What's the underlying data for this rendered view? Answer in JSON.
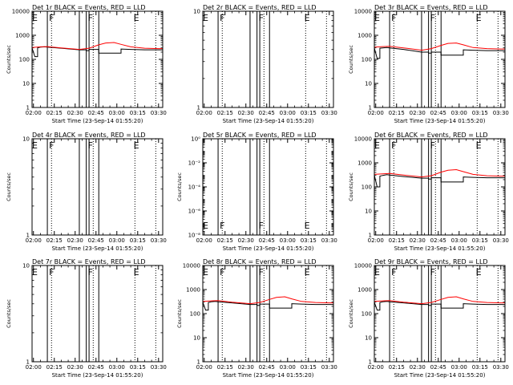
{
  "colors": {
    "background": "#ffffff",
    "axes": "#000000",
    "events": "#000000",
    "lld": "#ff0000"
  },
  "chart_data": [
    {
      "type": "line",
      "title": "Det 1r BLACK = Events, RED = LLD",
      "xlabel": "Start Time (23-Sep-14 01:55:20)",
      "ylabel": "Counts/sec",
      "yscale": "log",
      "ylim": [
        1,
        10000
      ],
      "yticks": [
        "1",
        "10",
        "100",
        "1000",
        "10000"
      ],
      "xlim": [
        "01:59",
        "03:33"
      ],
      "xticks": [
        "02:00",
        "02:15",
        "02:30",
        "02:45",
        "03:00",
        "03:15",
        "03:30"
      ],
      "solid_vlines": [
        "02:10",
        "02:33",
        "02:38",
        "02:40",
        "02:47"
      ],
      "dotted_vlines": [
        "02:13",
        "02:43",
        "03:13",
        "03:28"
      ],
      "markers": [
        {
          "label": "E",
          "time": "02:01"
        },
        {
          "label": "F",
          "time": "02:13"
        },
        {
          "label": "F",
          "time": "02:41"
        },
        {
          "label": "E",
          "time": "03:14"
        }
      ],
      "series": [
        {
          "color": "#000000",
          "x": [
            "01:59",
            "02:01",
            "02:03",
            "02:03",
            "02:05",
            "02:08",
            "02:10",
            "02:20",
            "02:33",
            "02:38",
            "02:38",
            "02:40",
            "02:40",
            "02:47",
            "02:47",
            "02:50",
            "02:55",
            "03:00",
            "03:03",
            "03:03",
            "03:10",
            "03:20",
            "03:30",
            "03:33"
          ],
          "y": [
            300,
            130,
            130,
            300,
            320,
            330,
            320,
            290,
            250,
            250,
            230,
            230,
            260,
            260,
            180,
            180,
            180,
            180,
            180,
            270,
            260,
            250,
            250,
            250
          ]
        },
        {
          "color": "#ff0000",
          "x": [
            "01:59",
            "02:05",
            "02:10",
            "02:20",
            "02:33",
            "02:40",
            "02:47",
            "02:52",
            "02:58",
            "03:03",
            "03:10",
            "03:20",
            "03:30",
            "03:33"
          ],
          "y": [
            310,
            330,
            340,
            300,
            260,
            290,
            400,
            480,
            500,
            420,
            330,
            290,
            280,
            280
          ]
        }
      ]
    },
    {
      "type": "line",
      "title": "Det 2r BLACK = Events, RED = LLD",
      "xlabel": "Start Time (23-Sep-14 01:55:20)",
      "ylabel": "",
      "yscale": "log",
      "ylim": [
        1,
        10
      ],
      "yticks": [
        "1",
        "10"
      ],
      "xlim": [
        "01:59",
        "03:33"
      ],
      "xticks": [
        "02:00",
        "02:15",
        "02:30",
        "02:45",
        "03:00",
        "03:15",
        "03:30"
      ],
      "solid_vlines": [
        "02:10",
        "02:33",
        "02:38",
        "02:40",
        "02:47"
      ],
      "dotted_vlines": [
        "02:13",
        "02:43",
        "03:13",
        "03:28"
      ],
      "markers": [
        {
          "label": "E",
          "time": "02:01"
        },
        {
          "label": "F",
          "time": "02:13"
        },
        {
          "label": "F",
          "time": "02:41"
        },
        {
          "label": "E",
          "time": "03:14"
        }
      ],
      "series": []
    },
    {
      "type": "line",
      "title": "Det 3r BLACK = Events, RED = LLD",
      "xlabel": "Start Time (23-Sep-14 01:55:20)",
      "ylabel": "Counts/sec",
      "yscale": "log",
      "ylim": [
        1,
        10000
      ],
      "yticks": [
        "1",
        "10",
        "100",
        "1000",
        "10000"
      ],
      "xlim": [
        "01:59",
        "03:33"
      ],
      "xticks": [
        "02:00",
        "02:15",
        "02:30",
        "02:45",
        "03:00",
        "03:15",
        "03:30"
      ],
      "solid_vlines": [
        "02:10",
        "02:33",
        "02:38",
        "02:40",
        "02:47"
      ],
      "dotted_vlines": [
        "02:13",
        "02:43",
        "03:13",
        "03:28"
      ],
      "markers": [
        {
          "label": "E",
          "time": "02:01"
        },
        {
          "label": "F",
          "time": "02:13"
        },
        {
          "label": "F",
          "time": "02:41"
        },
        {
          "label": "E",
          "time": "03:14"
        }
      ],
      "series": [
        {
          "color": "#000000",
          "x": [
            "01:59",
            "02:01",
            "02:03",
            "02:03",
            "02:05",
            "02:08",
            "02:10",
            "02:20",
            "02:33",
            "02:38",
            "02:38",
            "02:40",
            "02:40",
            "02:47",
            "02:47",
            "02:50",
            "02:55",
            "03:00",
            "03:03",
            "03:03",
            "03:10",
            "03:20",
            "03:30",
            "03:33"
          ],
          "y": [
            300,
            110,
            110,
            290,
            300,
            310,
            300,
            260,
            200,
            200,
            180,
            180,
            200,
            200,
            150,
            150,
            150,
            150,
            150,
            250,
            240,
            230,
            230,
            230
          ]
        },
        {
          "color": "#ff0000",
          "x": [
            "01:59",
            "02:05",
            "02:10",
            "02:20",
            "02:33",
            "02:40",
            "02:47",
            "02:52",
            "02:58",
            "03:03",
            "03:10",
            "03:20",
            "03:30",
            "03:33"
          ],
          "y": [
            320,
            340,
            350,
            300,
            240,
            280,
            380,
            460,
            480,
            400,
            310,
            280,
            270,
            270
          ]
        }
      ]
    },
    {
      "type": "line",
      "title": "Det 4r BLACK = Events, RED = LLD",
      "xlabel": "Start Time (23-Sep-14 01:55:20)",
      "ylabel": "Counts/sec",
      "yscale": "log",
      "ylim": [
        1,
        10
      ],
      "yticks": [
        "1",
        "10"
      ],
      "xlim": [
        "01:59",
        "03:33"
      ],
      "xticks": [
        "02:00",
        "02:15",
        "02:30",
        "02:45",
        "03:00",
        "03:15",
        "03:30"
      ],
      "solid_vlines": [
        "02:10",
        "02:33",
        "02:38",
        "02:40",
        "02:47"
      ],
      "dotted_vlines": [
        "02:13",
        "02:43",
        "03:13",
        "03:28"
      ],
      "markers": [
        {
          "label": "E",
          "time": "02:01"
        },
        {
          "label": "F",
          "time": "02:13"
        },
        {
          "label": "F",
          "time": "02:41"
        },
        {
          "label": "E",
          "time": "03:14"
        }
      ],
      "series": []
    },
    {
      "type": "line",
      "title": "Det 5r BLACK = Events, RED = LLD",
      "xlabel": "Start Time (23-Sep-14 01:55:20)",
      "ylabel": "Counts/sec",
      "yscale": "log",
      "ylim": [
        1e-08,
        1
      ],
      "yticks": [
        "10⁻⁸",
        "10⁻⁶",
        "10⁻⁴",
        "10⁻²",
        "10⁰"
      ],
      "xlim": [
        "01:59",
        "03:33"
      ],
      "xticks": [
        "02:00",
        "02:15",
        "02:30",
        "02:45",
        "03:00",
        "03:15",
        "03:30"
      ],
      "solid_vlines": [
        "02:10",
        "02:33",
        "02:38",
        "02:40",
        "02:47"
      ],
      "dotted_vlines": [
        "02:13",
        "02:43",
        "03:13",
        "03:28"
      ],
      "markers": [
        {
          "label": "E",
          "time": "02:01"
        },
        {
          "label": "F",
          "time": "02:13"
        },
        {
          "label": "F",
          "time": "02:41"
        },
        {
          "label": "E",
          "time": "03:14"
        }
      ],
      "series": []
    },
    {
      "type": "line",
      "title": "Det 6r BLACK = Events, RED = LLD",
      "xlabel": "Start Time (23-Sep-14 01:55:20)",
      "ylabel": "Counts/sec",
      "yscale": "log",
      "ylim": [
        1,
        10000
      ],
      "yticks": [
        "1",
        "10",
        "100",
        "1000",
        "10000"
      ],
      "xlim": [
        "01:59",
        "03:33"
      ],
      "xticks": [
        "02:00",
        "02:15",
        "02:30",
        "02:45",
        "03:00",
        "03:15",
        "03:30"
      ],
      "solid_vlines": [
        "02:10",
        "02:33",
        "02:38",
        "02:40",
        "02:47"
      ],
      "dotted_vlines": [
        "02:13",
        "02:43",
        "03:13",
        "03:28"
      ],
      "markers": [
        {
          "label": "E",
          "time": "02:01"
        },
        {
          "label": "F",
          "time": "02:13"
        },
        {
          "label": "F",
          "time": "02:41"
        },
        {
          "label": "E",
          "time": "03:14"
        }
      ],
      "series": [
        {
          "color": "#000000",
          "x": [
            "01:59",
            "02:01",
            "02:03",
            "02:03",
            "02:05",
            "02:08",
            "02:10",
            "02:20",
            "02:33",
            "02:38",
            "02:38",
            "02:40",
            "02:40",
            "02:47",
            "02:47",
            "02:50",
            "02:55",
            "03:00",
            "03:03",
            "03:03",
            "03:10",
            "03:20",
            "03:30",
            "03:33"
          ],
          "y": [
            310,
            100,
            100,
            280,
            300,
            320,
            310,
            270,
            230,
            230,
            210,
            210,
            240,
            240,
            160,
            160,
            160,
            160,
            160,
            260,
            250,
            240,
            240,
            240
          ]
        },
        {
          "color": "#ff0000",
          "x": [
            "01:59",
            "02:05",
            "02:10",
            "02:20",
            "02:33",
            "02:40",
            "02:47",
            "02:52",
            "02:58",
            "03:03",
            "03:10",
            "03:20",
            "03:30",
            "03:33"
          ],
          "y": [
            330,
            350,
            360,
            310,
            260,
            290,
            410,
            490,
            520,
            430,
            330,
            290,
            280,
            280
          ]
        }
      ]
    },
    {
      "type": "line",
      "title": "Det 7r BLACK = Events, RED = LLD",
      "xlabel": "Start Time (23-Sep-14 01:55:20)",
      "ylabel": "Counts/sec",
      "yscale": "log",
      "ylim": [
        1,
        10
      ],
      "yticks": [
        "1",
        "10"
      ],
      "xlim": [
        "01:59",
        "03:33"
      ],
      "xticks": [
        "02:00",
        "02:15",
        "02:30",
        "02:45",
        "03:00",
        "03:15",
        "03:30"
      ],
      "solid_vlines": [
        "02:10",
        "02:33",
        "02:38",
        "02:40",
        "02:47"
      ],
      "dotted_vlines": [
        "02:13",
        "02:43",
        "03:13",
        "03:28"
      ],
      "markers": [
        {
          "label": "E",
          "time": "02:01"
        },
        {
          "label": "F",
          "time": "02:13"
        },
        {
          "label": "F",
          "time": "02:41"
        },
        {
          "label": "E",
          "time": "03:14"
        }
      ],
      "series": []
    },
    {
      "type": "line",
      "title": "Det 8r BLACK = Events, RED = LLD",
      "xlabel": "Start Time (23-Sep-14 01:55:20)",
      "ylabel": "Counts/sec",
      "yscale": "log",
      "ylim": [
        1,
        10000
      ],
      "yticks": [
        "1",
        "10",
        "100",
        "1000",
        "10000"
      ],
      "xlim": [
        "01:59",
        "03:33"
      ],
      "xticks": [
        "02:00",
        "02:15",
        "02:30",
        "02:45",
        "03:00",
        "03:15",
        "03:30"
      ],
      "solid_vlines": [
        "02:10",
        "02:33",
        "02:38",
        "02:40",
        "02:47"
      ],
      "dotted_vlines": [
        "02:13",
        "02:43",
        "03:13",
        "03:28"
      ],
      "markers": [
        {
          "label": "E",
          "time": "02:01"
        },
        {
          "label": "F",
          "time": "02:13"
        },
        {
          "label": "F",
          "time": "02:41"
        },
        {
          "label": "E",
          "time": "03:14"
        }
      ],
      "series": [
        {
          "color": "#000000",
          "x": [
            "01:59",
            "02:01",
            "02:03",
            "02:03",
            "02:05",
            "02:08",
            "02:10",
            "02:20",
            "02:33",
            "02:38",
            "02:38",
            "02:40",
            "02:40",
            "02:47",
            "02:47",
            "02:50",
            "02:55",
            "03:00",
            "03:03",
            "03:03",
            "03:10",
            "03:20",
            "03:30",
            "03:33"
          ],
          "y": [
            300,
            140,
            140,
            290,
            310,
            320,
            310,
            280,
            240,
            240,
            220,
            220,
            250,
            250,
            170,
            170,
            170,
            170,
            170,
            260,
            250,
            240,
            240,
            240
          ]
        },
        {
          "color": "#ff0000",
          "x": [
            "01:59",
            "02:05",
            "02:10",
            "02:20",
            "02:33",
            "02:40",
            "02:47",
            "02:52",
            "02:58",
            "03:03",
            "03:10",
            "03:20",
            "03:30",
            "03:33"
          ],
          "y": [
            320,
            340,
            350,
            300,
            260,
            290,
            390,
            470,
            500,
            410,
            320,
            290,
            280,
            280
          ]
        }
      ]
    },
    {
      "type": "line",
      "title": "Det 9r BLACK = Events, RED = LLD",
      "xlabel": "Start Time (23-Sep-14 01:55:20)",
      "ylabel": "Counts/sec",
      "yscale": "log",
      "ylim": [
        1,
        10000
      ],
      "yticks": [
        "1",
        "10",
        "100",
        "1000",
        "10000"
      ],
      "xlim": [
        "01:59",
        "03:33"
      ],
      "xticks": [
        "02:00",
        "02:15",
        "02:30",
        "02:45",
        "03:00",
        "03:15",
        "03:30"
      ],
      "solid_vlines": [
        "02:10",
        "02:33",
        "02:38",
        "02:40",
        "02:47"
      ],
      "dotted_vlines": [
        "02:13",
        "02:43",
        "03:13",
        "03:28"
      ],
      "markers": [
        {
          "label": "E",
          "time": "02:01"
        },
        {
          "label": "F",
          "time": "02:13"
        },
        {
          "label": "F",
          "time": "02:41"
        },
        {
          "label": "E",
          "time": "03:14"
        }
      ],
      "series": [
        {
          "color": "#000000",
          "x": [
            "01:59",
            "02:01",
            "02:03",
            "02:03",
            "02:05",
            "02:08",
            "02:10",
            "02:20",
            "02:33",
            "02:38",
            "02:38",
            "02:40",
            "02:40",
            "02:47",
            "02:47",
            "02:50",
            "02:55",
            "03:00",
            "03:03",
            "03:03",
            "03:10",
            "03:20",
            "03:30",
            "03:33"
          ],
          "y": [
            300,
            140,
            140,
            290,
            310,
            320,
            310,
            280,
            240,
            240,
            220,
            220,
            250,
            250,
            170,
            170,
            170,
            170,
            170,
            260,
            250,
            240,
            240,
            240
          ]
        },
        {
          "color": "#ff0000",
          "x": [
            "01:59",
            "02:05",
            "02:10",
            "02:20",
            "02:33",
            "02:40",
            "02:47",
            "02:52",
            "02:58",
            "03:03",
            "03:10",
            "03:20",
            "03:30",
            "03:33"
          ],
          "y": [
            320,
            340,
            350,
            300,
            260,
            290,
            390,
            470,
            500,
            410,
            320,
            290,
            280,
            280
          ]
        }
      ]
    }
  ]
}
